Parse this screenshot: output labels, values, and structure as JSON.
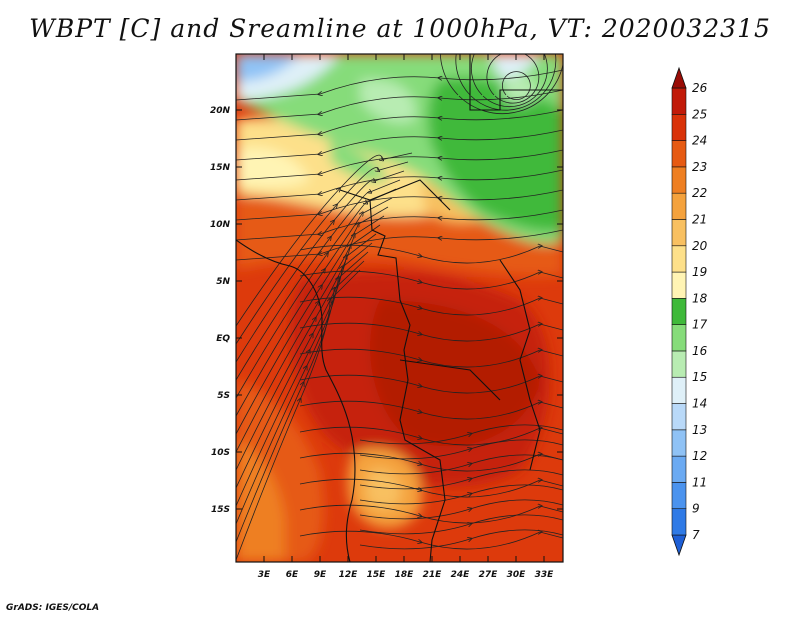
{
  "title": "WBPT [C] and Sreamline at 1000hPa, VT: 2020032315",
  "footer": "GrADS: IGES/COLA",
  "lat_labels": [
    "20N",
    "15N",
    "10N",
    "5N",
    "EQ",
    "5S",
    "10S",
    "15S"
  ],
  "lon_labels": [
    "3E",
    "6E",
    "9E",
    "12E",
    "15E",
    "18E",
    "21E",
    "24E",
    "27E",
    "30E",
    "33E"
  ],
  "colorbar": {
    "labels": [
      "7",
      "9",
      "11",
      "12",
      "13",
      "14",
      "15",
      "16",
      "17",
      "18",
      "19",
      "20",
      "21",
      "22",
      "23",
      "24",
      "25",
      "26"
    ],
    "colors": [
      "#1e5fd6",
      "#2f7ae6",
      "#4b93ee",
      "#6baaf2",
      "#8fc2f5",
      "#b9d9f8",
      "#dff0f8",
      "#b8ecb2",
      "#86dc7a",
      "#3fb93a",
      "#fff4b4",
      "#fde08a",
      "#f8c061",
      "#f4a23d",
      "#ee7f22",
      "#e65a12",
      "#d93208",
      "#c11a08",
      "#9a0c06"
    ]
  }
}
